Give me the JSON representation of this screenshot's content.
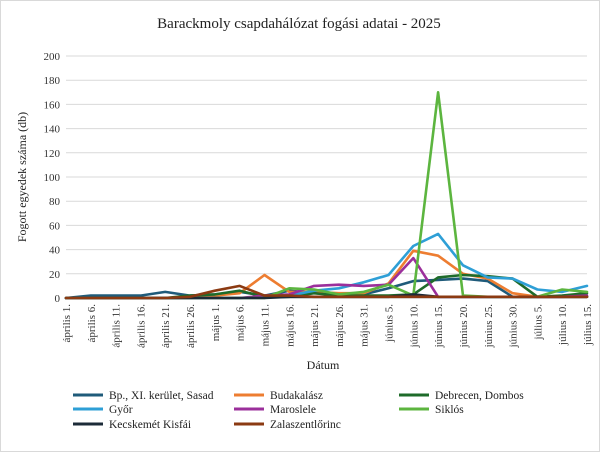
{
  "chart_data": {
    "type": "line",
    "title": "Barackmoly csapdahálózat fogási adatai - 2025",
    "xlabel": "Dátum",
    "ylabel": "Fogott egyedek száma (db)",
    "ylim": [
      0,
      200
    ],
    "yticks": [
      0,
      20,
      40,
      60,
      80,
      100,
      120,
      140,
      160,
      180,
      200
    ],
    "grid": true,
    "legend_position": "bottom",
    "x": [
      "április 1.",
      "április 6.",
      "április 11.",
      "április 16.",
      "április 21.",
      "április 26.",
      "május 1.",
      "május 6.",
      "május 11.",
      "május 16.",
      "május 21.",
      "május 26.",
      "május 31.",
      "június 5.",
      "június 10.",
      "június 15.",
      "június 20.",
      "június 25.",
      "június 30.",
      "július 5.",
      "július 10.",
      "július 15."
    ],
    "series": [
      {
        "name": "Bp., XI. kerület, Sasad",
        "color": "#1f5b7a",
        "values": [
          0,
          2,
          2,
          2,
          5,
          2,
          3,
          5,
          2,
          6,
          4,
          3,
          3,
          8,
          14,
          15,
          16,
          14,
          1,
          1,
          1,
          1
        ]
      },
      {
        "name": "Budakalász",
        "color": "#ed7d31",
        "values": [
          0,
          0,
          0,
          0,
          0,
          0,
          2,
          4,
          19,
          5,
          5,
          4,
          4,
          12,
          39,
          35,
          20,
          16,
          4,
          1,
          1,
          1
        ]
      },
      {
        "name": "Debrecen, Dombos",
        "color": "#1e6b2a",
        "values": [
          0,
          0,
          0,
          0,
          0,
          2,
          3,
          6,
          1,
          1,
          4,
          2,
          2,
          2,
          3,
          17,
          19,
          18,
          16,
          1,
          2,
          4
        ]
      },
      {
        "name": "Győr",
        "color": "#2e9fd6",
        "values": [
          0,
          0,
          0,
          0,
          0,
          0,
          0,
          0,
          1,
          2,
          6,
          8,
          13,
          19,
          43,
          53,
          27,
          17,
          16,
          7,
          5,
          10
        ]
      },
      {
        "name": "Maroslele",
        "color": "#9b2f9b",
        "values": [
          0,
          0,
          0,
          0,
          0,
          0,
          0,
          0,
          2,
          3,
          10,
          11,
          10,
          11,
          33,
          1,
          1,
          1,
          1,
          1,
          1,
          2
        ]
      },
      {
        "name": "Siklós",
        "color": "#5cb53f",
        "values": [
          0,
          0,
          0,
          0,
          0,
          0,
          0,
          0,
          0,
          8,
          7,
          3,
          5,
          11,
          2,
          170,
          2,
          1,
          1,
          1,
          7,
          5
        ]
      },
      {
        "name": "Kecskemét Kisfái",
        "color": "#1c2b38",
        "values": [
          0,
          0,
          0,
          0,
          0,
          0,
          0,
          0,
          0,
          1,
          1,
          1,
          1,
          1,
          3,
          1,
          1,
          1,
          1,
          1,
          1,
          1
        ]
      },
      {
        "name": "Zalaszentlőrinc",
        "color": "#8b3a12",
        "values": [
          0,
          0,
          0,
          0,
          0,
          1,
          6,
          10,
          2,
          2,
          1,
          1,
          1,
          1,
          1,
          1,
          1,
          1,
          1,
          1,
          1,
          1
        ]
      }
    ]
  }
}
